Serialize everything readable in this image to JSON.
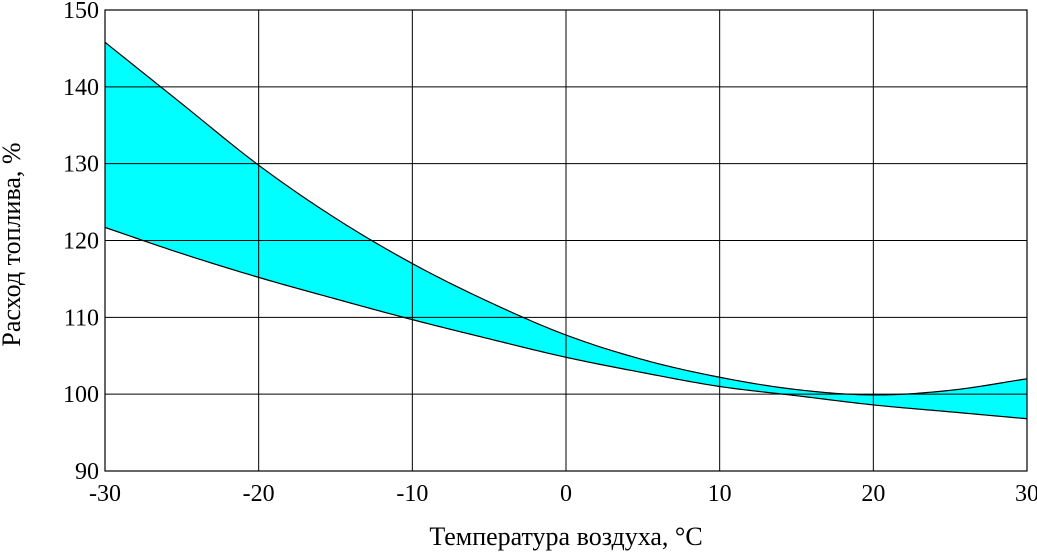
{
  "chart_data": {
    "type": "area",
    "title": "",
    "xlabel": "Температура воздуха, °C",
    "ylabel": "Расход топлива, %",
    "xlim": [
      -30,
      30
    ],
    "ylim": [
      90,
      150
    ],
    "x_ticks": [
      -30,
      -20,
      -10,
      0,
      10,
      20,
      30
    ],
    "y_ticks": [
      90,
      100,
      110,
      120,
      130,
      140,
      150
    ],
    "x_tick_labels": [
      "-30",
      "-20",
      "-10",
      "0",
      "10",
      "20",
      "30"
    ],
    "y_tick_labels": [
      "90",
      "100",
      "110",
      "120",
      "130",
      "140",
      "150"
    ],
    "grid": true,
    "band_color": "#00ffff",
    "series": [
      {
        "x": [
          -30,
          -25,
          -20,
          -15,
          -10,
          -5,
          0,
          5,
          10,
          15,
          20,
          25,
          30
        ],
        "values": [
          145.8,
          137.8,
          129.8,
          122.9,
          117.0,
          112.0,
          107.7,
          104.5,
          102.2,
          100.6,
          99.9,
          100.5,
          102.0
        ]
      },
      {
        "x": [
          -30,
          -25,
          -20,
          -15,
          -10,
          -5,
          0,
          5,
          10,
          15,
          20,
          25,
          30
        ],
        "values": [
          121.7,
          118.3,
          115.2,
          112.4,
          109.7,
          107.2,
          104.8,
          102.8,
          101.0,
          99.8,
          98.6,
          97.7,
          96.8
        ]
      }
    ]
  }
}
